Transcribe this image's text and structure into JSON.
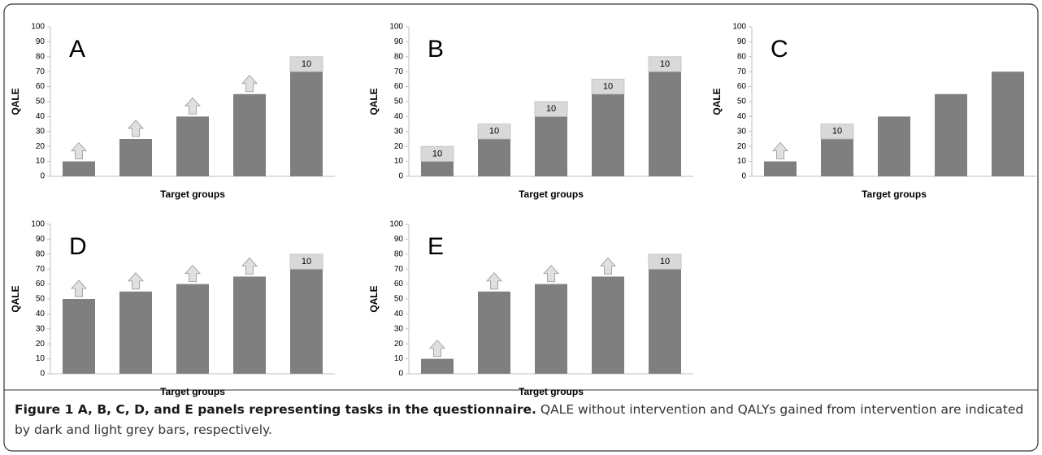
{
  "caption": {
    "bold": "Figure 1 A, B, C, D, and E panels representing tasks in the questionnaire.",
    "text": "QALE without intervention and QALYs gained from intervention are indicated by dark and light grey bars, respectively."
  },
  "chart_data": [
    {
      "type": "bar",
      "stacked": true,
      "label": "A",
      "ylabel": "QALE",
      "xlabel": "Target groups",
      "categories": [
        null,
        null,
        null,
        null,
        null
      ],
      "ylim": [
        0,
        100
      ],
      "yticks": [
        0,
        10,
        20,
        30,
        40,
        50,
        60,
        70,
        80,
        90,
        100
      ],
      "series": [
        {
          "color": "#7f7f7f",
          "values": [
            10,
            25,
            40,
            55,
            70
          ]
        },
        {
          "color": "#d9d9d9",
          "values": [
            null,
            null,
            null,
            null,
            10
          ]
        }
      ],
      "arrows": [
        true,
        true,
        true,
        true,
        false
      ]
    },
    {
      "type": "bar",
      "stacked": true,
      "label": "B",
      "ylabel": "QALE",
      "xlabel": "Target groups",
      "categories": [
        null,
        null,
        null,
        null,
        null
      ],
      "ylim": [
        0,
        100
      ],
      "yticks": [
        0,
        10,
        20,
        30,
        40,
        50,
        60,
        70,
        80,
        90,
        100
      ],
      "series": [
        {
          "color": "#7f7f7f",
          "values": [
            10,
            25,
            40,
            55,
            70
          ]
        },
        {
          "color": "#d9d9d9",
          "values": [
            10,
            10,
            10,
            10,
            10
          ]
        }
      ],
      "arrows": [
        false,
        false,
        false,
        false,
        false
      ]
    },
    {
      "type": "bar",
      "stacked": true,
      "label": "C",
      "ylabel": "QALE",
      "xlabel": "Target groups",
      "categories": [
        null,
        null,
        null,
        null,
        null
      ],
      "ylim": [
        0,
        100
      ],
      "yticks": [
        0,
        10,
        20,
        30,
        40,
        50,
        60,
        70,
        80,
        90,
        100
      ],
      "series": [
        {
          "color": "#7f7f7f",
          "values": [
            10,
            25,
            40,
            55,
            70
          ]
        },
        {
          "color": "#d9d9d9",
          "values": [
            null,
            10,
            null,
            null,
            null
          ]
        }
      ],
      "arrows": [
        true,
        false,
        false,
        false,
        false
      ]
    },
    {
      "type": "bar",
      "stacked": true,
      "label": "D",
      "ylabel": "QALE",
      "xlabel": "Target groups",
      "categories": [
        null,
        null,
        null,
        null,
        null
      ],
      "ylim": [
        0,
        100
      ],
      "yticks": [
        0,
        10,
        20,
        30,
        40,
        50,
        60,
        70,
        80,
        90,
        100
      ],
      "series": [
        {
          "color": "#7f7f7f",
          "values": [
            50,
            55,
            60,
            65,
            70
          ]
        },
        {
          "color": "#d9d9d9",
          "values": [
            null,
            null,
            null,
            null,
            10
          ]
        }
      ],
      "arrows": [
        true,
        true,
        true,
        true,
        false
      ]
    },
    {
      "type": "bar",
      "stacked": true,
      "label": "E",
      "ylabel": "QALE",
      "xlabel": "Target groups",
      "categories": [
        null,
        null,
        null,
        null,
        null
      ],
      "ylim": [
        0,
        100
      ],
      "yticks": [
        0,
        10,
        20,
        30,
        40,
        50,
        60,
        70,
        80,
        90,
        100
      ],
      "series": [
        {
          "color": "#7f7f7f",
          "values": [
            10,
            55,
            60,
            65,
            70
          ]
        },
        {
          "color": "#d9d9d9",
          "values": [
            null,
            null,
            null,
            null,
            10
          ]
        }
      ],
      "arrows": [
        true,
        true,
        true,
        true,
        false
      ]
    }
  ]
}
